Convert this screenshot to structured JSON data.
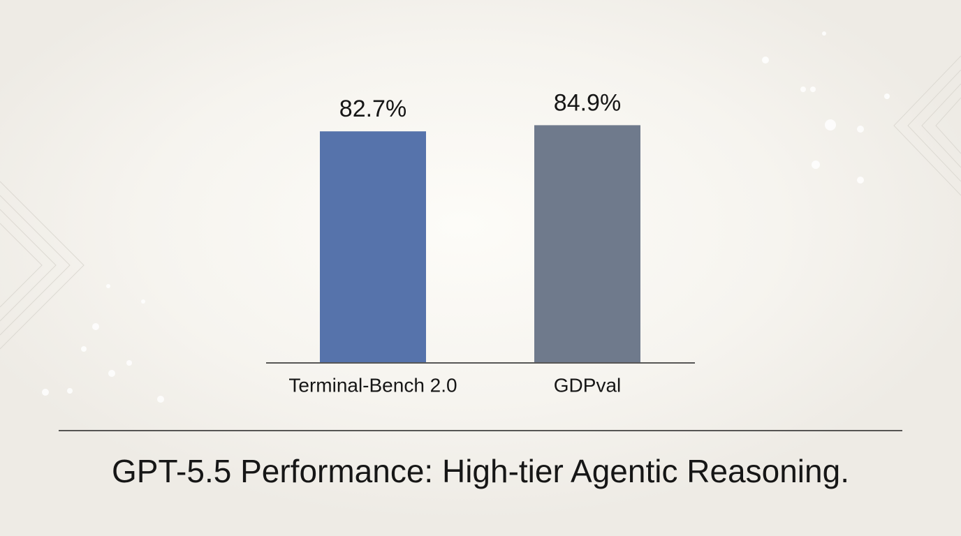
{
  "chart_data": {
    "type": "bar",
    "title": "GPT-5.5 Performance: High-tier Agentic Reasoning.",
    "categories": [
      "Terminal-Bench 2.0",
      "GDPval"
    ],
    "values": [
      82.7,
      84.9
    ],
    "value_labels": [
      "82.7%",
      "84.9%"
    ],
    "colors": [
      "#5673ab",
      "#6f7a8c"
    ]
  }
}
